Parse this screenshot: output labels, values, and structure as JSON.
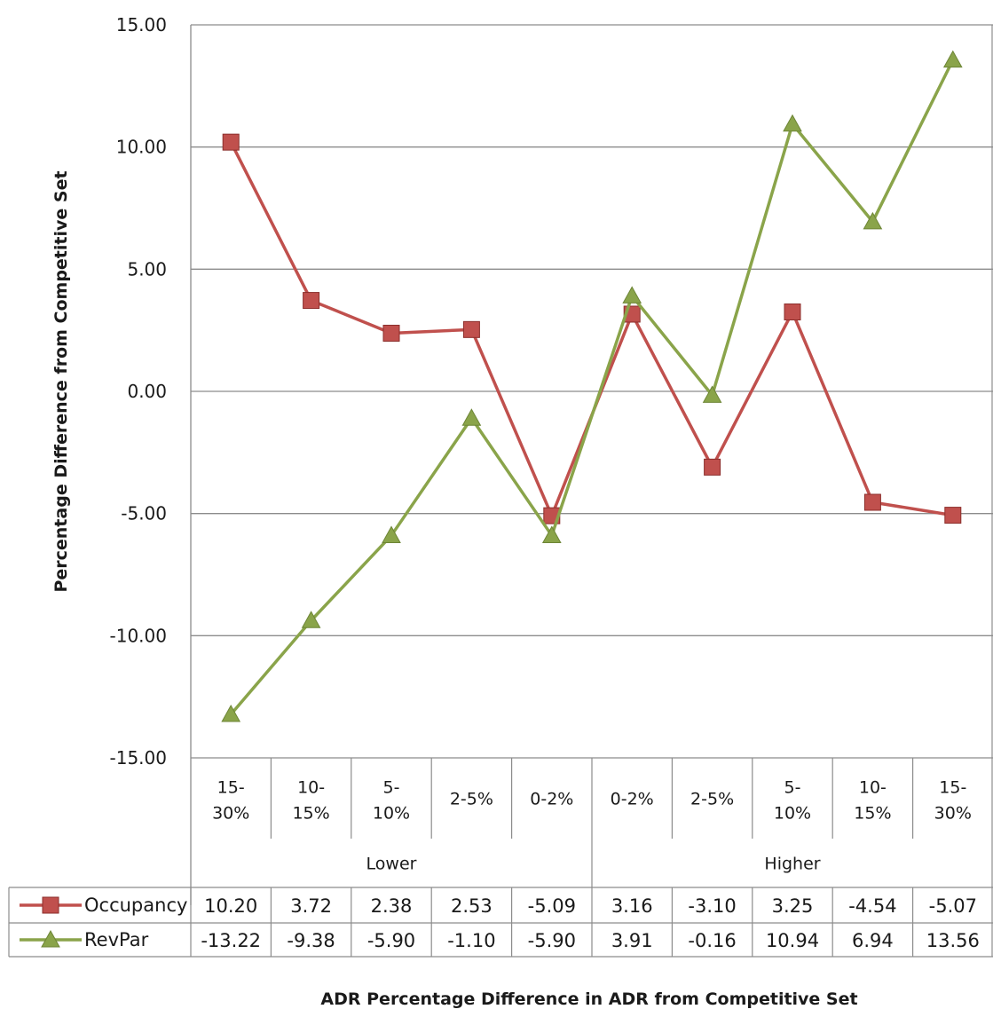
{
  "chart_data": {
    "type": "line",
    "title": "",
    "xlabel": "ADR Percentage Difference in ADR from Competitive Set",
    "ylabel": "Percentage Difference from Competitive Set",
    "ylim": [
      -15,
      15
    ],
    "y_ticks": [
      "15.00",
      "10.00",
      "5.00",
      "0.00",
      "-5.00",
      "-10.00",
      "-15.00"
    ],
    "grid": true,
    "legend": "data table rows",
    "categories": [
      [
        "15-",
        "30%"
      ],
      [
        "10-",
        "15%"
      ],
      [
        "5-",
        "10%"
      ],
      [
        "2-5%"
      ],
      [
        "0-2%"
      ],
      [
        "0-2%"
      ],
      [
        "2-5%"
      ],
      [
        "5-",
        "10%"
      ],
      [
        "10-",
        "15%"
      ],
      [
        "15-",
        "30%"
      ]
    ],
    "groups": [
      {
        "label": "Lower",
        "from": 0,
        "to": 4
      },
      {
        "label": "Higher",
        "from": 5,
        "to": 9
      }
    ],
    "series": [
      {
        "name": "Occupancy",
        "color": "#c0504d",
        "marker": "square",
        "values": [
          10.2,
          3.72,
          2.38,
          2.53,
          -5.09,
          3.16,
          -3.1,
          3.25,
          -4.54,
          -5.07
        ],
        "labels": [
          "10.20",
          "3.72",
          "2.38",
          "2.53",
          "-5.09",
          "3.16",
          "-3.10",
          "3.25",
          "-4.54",
          "-5.07"
        ]
      },
      {
        "name": "RevPar",
        "color": "#8aa44a",
        "marker": "triangle",
        "values": [
          -13.22,
          -9.38,
          -5.9,
          -1.1,
          -5.9,
          3.91,
          -0.16,
          10.94,
          6.94,
          13.56
        ],
        "labels": [
          "-13.22",
          "-9.38",
          "-5.90",
          "-1.10",
          "-5.90",
          "3.91",
          "-0.16",
          "10.94",
          "6.94",
          "13.56"
        ]
      }
    ]
  }
}
